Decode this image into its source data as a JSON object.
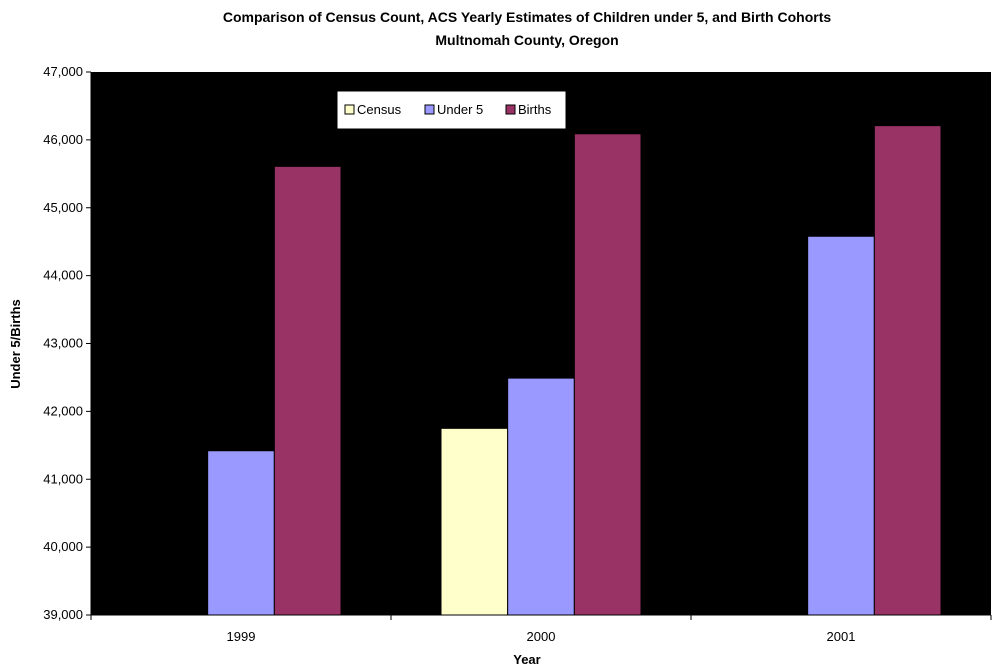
{
  "chart_data": {
    "type": "bar",
    "title": "Comparison of Census Count, ACS Yearly Estimates of Children under 5, and Birth Cohorts",
    "subtitle": "Multnomah County, Oregon",
    "xlabel": "Year",
    "ylabel": "Under 5/Births",
    "categories": [
      "1999",
      "2000",
      "2001"
    ],
    "series": [
      {
        "name": "Census",
        "color": "#ffffcc",
        "values": [
          null,
          41750,
          null
        ]
      },
      {
        "name": "Under 5",
        "color": "#9999ff",
        "values": [
          41420,
          42490,
          44580
        ]
      },
      {
        "name": "Births",
        "color": "#993366",
        "values": [
          45610,
          46090,
          46210
        ]
      }
    ],
    "ylim": [
      39000,
      47000
    ],
    "ytick_step": 1000,
    "yticks": [
      "39,000",
      "40,000",
      "41,000",
      "42,000",
      "43,000",
      "44,000",
      "45,000",
      "46,000",
      "47,000"
    ],
    "plot_background": "#000000",
    "grid": false,
    "legend_position": "top-left"
  }
}
